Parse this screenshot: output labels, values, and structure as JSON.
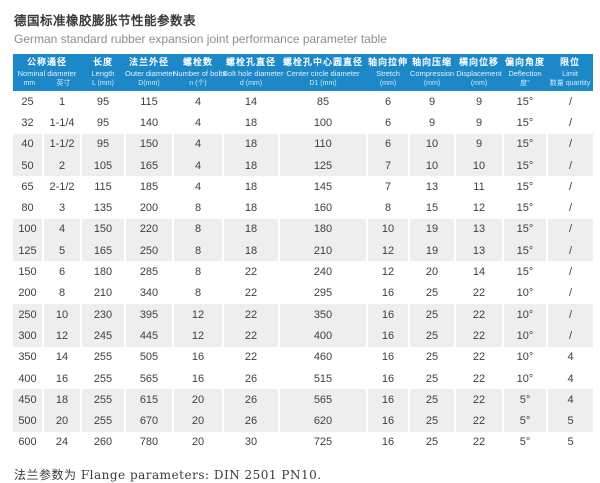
{
  "page": {
    "title_zh": "德国标准橡胶膨胀节性能参数表",
    "title_en": "German standard rubber expansion joint performance parameter table",
    "footer": "法兰参数为 Flange parameters: DIN 2501 PN10."
  },
  "colors": {
    "header_blue": "#1d88c7",
    "stripe_gray": "#eeeeee",
    "data_text": "#3f3f3f",
    "subtitle_gray": "#8e8e8e"
  },
  "table": {
    "columns": [
      {
        "zh": "公称通径",
        "en": "Nominal diameter",
        "unit1": "mm",
        "unit2": "英寸"
      },
      {
        "zh": "长度",
        "en": "Length",
        "unit": "L (mm)"
      },
      {
        "zh": "法兰外径",
        "en": "Outer diameter",
        "unit": "D(mm)"
      },
      {
        "zh": "螺栓数",
        "en": "Number of bolts",
        "unit": "n (个)"
      },
      {
        "zh": "螺栓孔直径",
        "en": "Bolt hole diameter",
        "unit": "d (mm)"
      },
      {
        "zh": "螺栓孔中心圆直径",
        "en": "Center circle diameter",
        "unit": "D1 (mm)"
      },
      {
        "zh": "轴向拉伸",
        "en": "Stretch",
        "unit": "(mm)"
      },
      {
        "zh": "轴向压缩",
        "en": "Compression",
        "unit": "(mm)"
      },
      {
        "zh": "横向位移",
        "en": "Displacement",
        "unit": "(mm)"
      },
      {
        "zh": "偏向角度",
        "en": "Deflection",
        "unit": "度°"
      },
      {
        "zh": "限位",
        "en": "Limit",
        "unit": "数量 quantity"
      }
    ],
    "rows": [
      [
        "25",
        "1",
        "95",
        "115",
        "4",
        "14",
        "85",
        "6",
        "9",
        "9",
        "15°",
        "/"
      ],
      [
        "32",
        "1-1/4",
        "95",
        "140",
        "4",
        "18",
        "100",
        "6",
        "9",
        "9",
        "15°",
        "/"
      ],
      [
        "40",
        "1-1/2",
        "95",
        "150",
        "4",
        "18",
        "110",
        "6",
        "10",
        "9",
        "15°",
        "/"
      ],
      [
        "50",
        "2",
        "105",
        "165",
        "4",
        "18",
        "125",
        "7",
        "10",
        "10",
        "15°",
        "/"
      ],
      [
        "65",
        "2-1/2",
        "115",
        "185",
        "4",
        "18",
        "145",
        "7",
        "13",
        "11",
        "15°",
        "/"
      ],
      [
        "80",
        "3",
        "135",
        "200",
        "8",
        "18",
        "160",
        "8",
        "15",
        "12",
        "15°",
        "/"
      ],
      [
        "100",
        "4",
        "150",
        "220",
        "8",
        "18",
        "180",
        "10",
        "19",
        "13",
        "15°",
        "/"
      ],
      [
        "125",
        "5",
        "165",
        "250",
        "8",
        "18",
        "210",
        "12",
        "19",
        "13",
        "15°",
        "/"
      ],
      [
        "150",
        "6",
        "180",
        "285",
        "8",
        "22",
        "240",
        "12",
        "20",
        "14",
        "15°",
        "/"
      ],
      [
        "200",
        "8",
        "210",
        "340",
        "8",
        "22",
        "295",
        "16",
        "25",
        "22",
        "10°",
        "/"
      ],
      [
        "250",
        "10",
        "230",
        "395",
        "12",
        "22",
        "350",
        "16",
        "25",
        "22",
        "10°",
        "/"
      ],
      [
        "300",
        "12",
        "245",
        "445",
        "12",
        "22",
        "400",
        "16",
        "25",
        "22",
        "10°",
        "/"
      ],
      [
        "350",
        "14",
        "255",
        "505",
        "16",
        "22",
        "460",
        "16",
        "25",
        "22",
        "10°",
        "4"
      ],
      [
        "400",
        "16",
        "255",
        "565",
        "16",
        "26",
        "515",
        "16",
        "25",
        "22",
        "10°",
        "4"
      ],
      [
        "450",
        "18",
        "255",
        "615",
        "20",
        "26",
        "565",
        "16",
        "25",
        "22",
        "5°",
        "4"
      ],
      [
        "500",
        "20",
        "255",
        "670",
        "20",
        "26",
        "620",
        "16",
        "25",
        "22",
        "5°",
        "5"
      ],
      [
        "600",
        "24",
        "260",
        "780",
        "20",
        "30",
        "725",
        "16",
        "25",
        "22",
        "5°",
        "5"
      ]
    ]
  }
}
